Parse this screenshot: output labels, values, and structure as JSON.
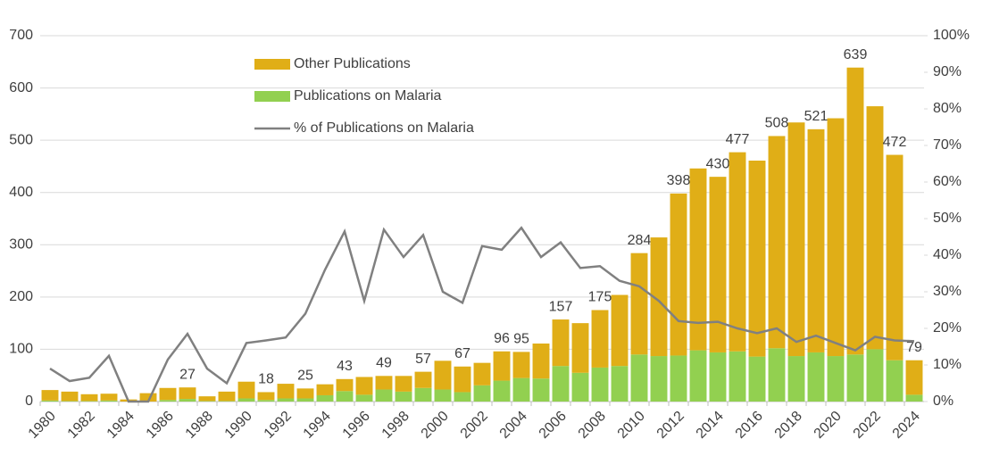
{
  "chart_data": {
    "type": "stacked_bar_line",
    "categories": [
      "1980",
      null,
      "1982",
      null,
      "1984",
      null,
      "1986",
      null,
      "1988",
      null,
      "1990",
      null,
      "1992",
      null,
      "1994",
      null,
      "1996",
      null,
      "1998",
      null,
      "2000",
      null,
      "2002",
      null,
      "2004",
      null,
      "2006",
      null,
      "2008",
      null,
      "2010",
      null,
      "2012",
      null,
      "2014",
      null,
      "2016",
      null,
      "2018",
      null,
      "2020",
      null,
      "2022",
      null,
      "2024"
    ],
    "series": [
      {
        "name": "Other Publications",
        "type": "bar",
        "color": "#e0ae17",
        "values": [
          20,
          18,
          13,
          13,
          4,
          16,
          23,
          22,
          9,
          18,
          32,
          15,
          28,
          19,
          21,
          23,
          34,
          26,
          30,
          31,
          55,
          49,
          43,
          56,
          50,
          67,
          89,
          95,
          110,
          136,
          194,
          227,
          310,
          348,
          336,
          381,
          375,
          406,
          447,
          427,
          455,
          549,
          465,
          393,
          66
        ]
      },
      {
        "name": "Publications on Malaria",
        "type": "bar",
        "color": "#92d050",
        "values": [
          2,
          1,
          1,
          2,
          0,
          0,
          3,
          5,
          1,
          1,
          6,
          3,
          6,
          6,
          12,
          20,
          13,
          23,
          19,
          26,
          23,
          18,
          31,
          40,
          45,
          44,
          68,
          55,
          65,
          68,
          90,
          87,
          88,
          98,
          94,
          96,
          86,
          102,
          87,
          94,
          87,
          90,
          100,
          79,
          13
        ]
      },
      {
        "name": "% of Publications on Malaria",
        "type": "line",
        "axis": "y2",
        "color": "#808080",
        "values": [
          9,
          5.6,
          6.5,
          12.5,
          0,
          0,
          11.5,
          18.5,
          9,
          5,
          16,
          16.7,
          17.5,
          24,
          36,
          46.5,
          27.5,
          47,
          39.5,
          45.5,
          30,
          27,
          42.5,
          41.5,
          47.5,
          39.5,
          43.5,
          36.5,
          37,
          33,
          31.5,
          27.5,
          22,
          21.5,
          21.8,
          20,
          18.7,
          20,
          16.3,
          18,
          16,
          14,
          17.7,
          16.7,
          16.5
        ]
      }
    ],
    "total_labels": [
      null,
      null,
      null,
      null,
      null,
      null,
      null,
      27,
      null,
      null,
      null,
      18,
      null,
      25,
      null,
      43,
      null,
      49,
      null,
      57,
      null,
      67,
      null,
      96,
      95,
      null,
      157,
      null,
      175,
      null,
      284,
      null,
      398,
      null,
      430,
      477,
      null,
      508,
      null,
      521,
      null,
      639,
      null,
      472,
      79
    ],
    "ylim": [
      0,
      700
    ],
    "yticks": [
      0,
      100,
      200,
      300,
      400,
      500,
      600,
      700
    ],
    "y2lim": [
      0,
      100
    ],
    "y2ticks": [
      {
        "value": 0,
        "label": "0%"
      },
      {
        "value": 10,
        "label": "10%"
      },
      {
        "value": 20,
        "label": "20%"
      },
      {
        "value": 30,
        "label": "30%"
      },
      {
        "value": 40,
        "label": "40%"
      },
      {
        "value": 50,
        "label": "50%"
      },
      {
        "value": 60,
        "label": "60%"
      },
      {
        "value": 70,
        "label": "70%"
      },
      {
        "value": 80,
        "label": "80%"
      },
      {
        "value": 90,
        "label": "90%"
      },
      {
        "value": 100,
        "label": "100%"
      }
    ],
    "grid": true
  }
}
